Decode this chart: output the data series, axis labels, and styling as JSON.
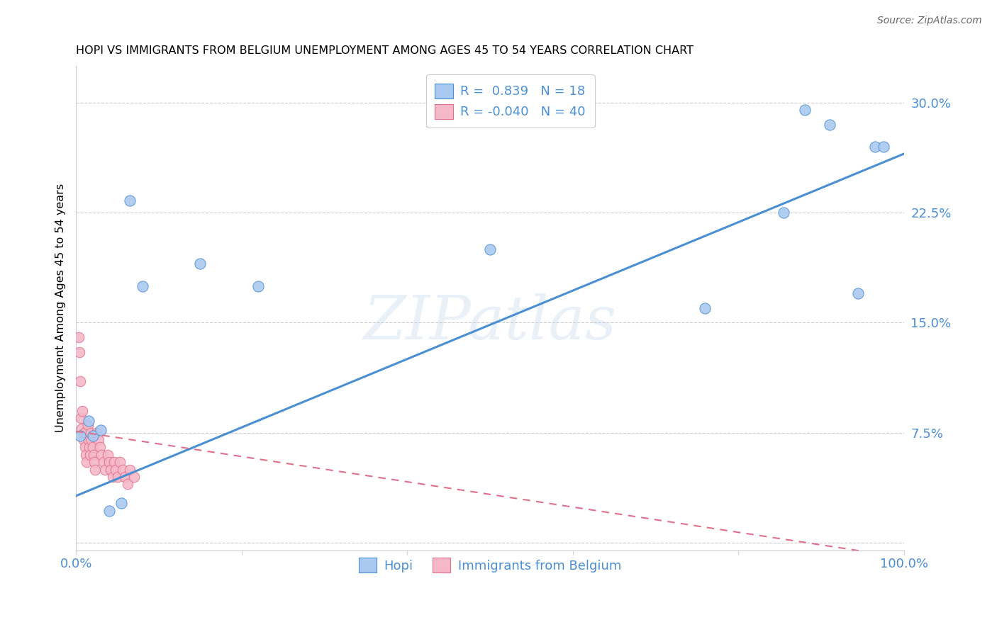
{
  "title": "HOPI VS IMMIGRANTS FROM BELGIUM UNEMPLOYMENT AMONG AGES 45 TO 54 YEARS CORRELATION CHART",
  "source": "Source: ZipAtlas.com",
  "ylabel": "Unemployment Among Ages 45 to 54 years",
  "xlim": [
    0.0,
    1.0
  ],
  "ylim": [
    -0.005,
    0.325
  ],
  "xticks": [
    0.0,
    0.2,
    0.4,
    0.6,
    0.8,
    1.0
  ],
  "xticklabels": [
    "0.0%",
    "",
    "",
    "",
    "",
    "100.0%"
  ],
  "yticks": [
    0.0,
    0.075,
    0.15,
    0.225,
    0.3
  ],
  "yticklabels": [
    "",
    "7.5%",
    "15.0%",
    "22.5%",
    "30.0%"
  ],
  "hopi_R": 0.839,
  "hopi_N": 18,
  "belgium_R": -0.04,
  "belgium_N": 40,
  "hopi_color": "#aac9f0",
  "hopi_line_color": "#4a8fd4",
  "belgium_color": "#f5b8c8",
  "belgium_line_color": "#e0708a",
  "watermark": "ZIPatlas",
  "hopi_x": [
    0.005,
    0.015,
    0.02,
    0.03,
    0.04,
    0.055,
    0.065,
    0.08,
    0.15,
    0.22,
    0.5,
    0.76,
    0.855,
    0.88,
    0.91,
    0.945,
    0.965,
    0.975
  ],
  "hopi_y": [
    0.073,
    0.083,
    0.073,
    0.077,
    0.022,
    0.027,
    0.233,
    0.175,
    0.19,
    0.175,
    0.2,
    0.16,
    0.225,
    0.295,
    0.285,
    0.17,
    0.27,
    0.27
  ],
  "belgium_x": [
    0.003,
    0.004,
    0.005,
    0.006,
    0.007,
    0.008,
    0.009,
    0.01,
    0.011,
    0.012,
    0.013,
    0.014,
    0.015,
    0.016,
    0.017,
    0.018,
    0.019,
    0.02,
    0.021,
    0.022,
    0.023,
    0.025,
    0.027,
    0.029,
    0.031,
    0.033,
    0.035,
    0.038,
    0.04,
    0.042,
    0.044,
    0.046,
    0.048,
    0.05,
    0.053,
    0.056,
    0.059,
    0.062,
    0.065,
    0.07
  ],
  "belgium_y": [
    0.14,
    0.13,
    0.11,
    0.085,
    0.078,
    0.09,
    0.07,
    0.075,
    0.065,
    0.06,
    0.055,
    0.08,
    0.07,
    0.065,
    0.06,
    0.075,
    0.07,
    0.065,
    0.06,
    0.055,
    0.05,
    0.075,
    0.07,
    0.065,
    0.06,
    0.055,
    0.05,
    0.06,
    0.055,
    0.05,
    0.045,
    0.055,
    0.05,
    0.045,
    0.055,
    0.05,
    0.045,
    0.04,
    0.05,
    0.045
  ],
  "hopi_line_x0": 0.0,
  "hopi_line_y0": 0.032,
  "hopi_line_x1": 1.0,
  "hopi_line_y1": 0.265,
  "belg_line_x0": 0.0,
  "belg_line_y0": 0.076,
  "belg_line_x1": 1.0,
  "belg_line_y1": -0.01
}
